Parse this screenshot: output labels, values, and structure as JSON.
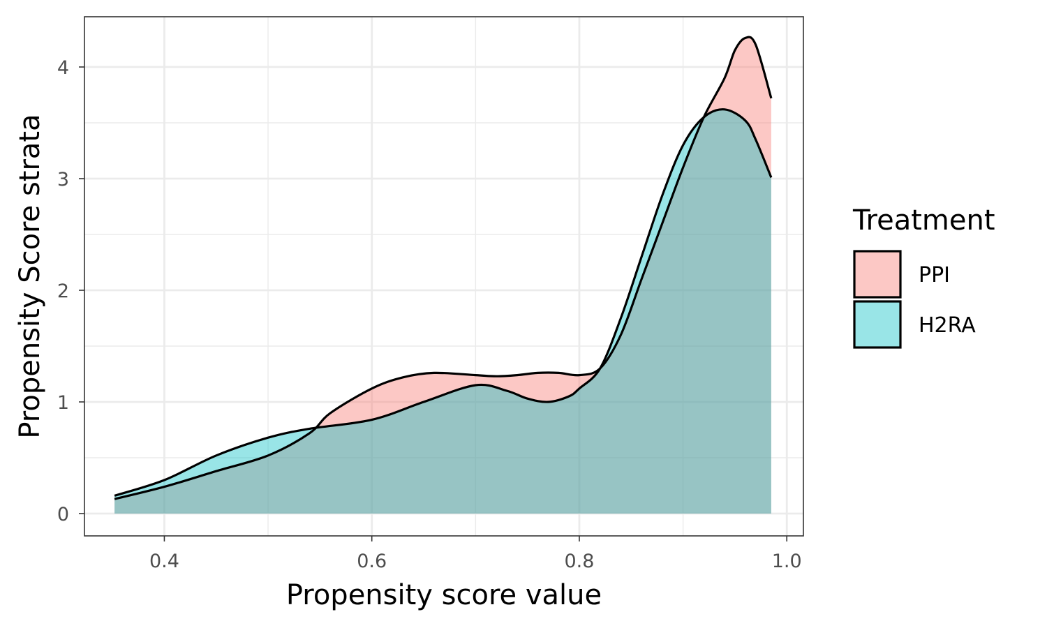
{
  "chart_data": {
    "type": "area",
    "xlabel": "Propensity score value",
    "ylabel": "Propensity Score strata",
    "xlim": [
      0.323,
      1.016
    ],
    "ylim": [
      -0.2,
      4.45
    ],
    "x_ticks": [
      0.4,
      0.6,
      0.8,
      1.0
    ],
    "x_tick_labels": [
      "0.4",
      "0.6",
      "0.8",
      "1.0"
    ],
    "y_ticks": [
      0,
      1,
      2,
      3,
      4
    ],
    "y_tick_labels": [
      "0",
      "1",
      "2",
      "3",
      "4"
    ],
    "grid": true,
    "legend": {
      "title": "Treatment",
      "placement": "right",
      "entries": [
        {
          "label": "PPI",
          "color": "#F8766D"
        },
        {
          "label": "H2RA",
          "color": "#00BFC4"
        }
      ]
    },
    "series": [
      {
        "name": "PPI",
        "color": "#F8766D",
        "x": [
          0.352,
          0.4,
          0.45,
          0.5,
          0.54,
          0.56,
          0.6,
          0.63,
          0.66,
          0.7,
          0.72,
          0.74,
          0.76,
          0.78,
          0.8,
          0.82,
          0.84,
          0.86,
          0.88,
          0.9,
          0.92,
          0.94,
          0.95,
          0.96,
          0.97,
          0.985
        ],
        "y": [
          0.13,
          0.24,
          0.38,
          0.52,
          0.72,
          0.9,
          1.12,
          1.22,
          1.26,
          1.24,
          1.23,
          1.24,
          1.26,
          1.26,
          1.24,
          1.3,
          1.6,
          2.1,
          2.6,
          3.1,
          3.55,
          3.9,
          4.15,
          4.26,
          4.2,
          3.72
        ]
      },
      {
        "name": "H2RA",
        "color": "#00BFC4",
        "x": [
          0.352,
          0.4,
          0.45,
          0.5,
          0.54,
          0.6,
          0.65,
          0.7,
          0.73,
          0.75,
          0.77,
          0.79,
          0.8,
          0.82,
          0.84,
          0.86,
          0.88,
          0.9,
          0.92,
          0.94,
          0.96,
          0.97,
          0.985
        ],
        "y": [
          0.16,
          0.3,
          0.52,
          0.68,
          0.76,
          0.84,
          1.0,
          1.15,
          1.1,
          1.03,
          1.0,
          1.05,
          1.12,
          1.3,
          1.75,
          2.3,
          2.85,
          3.3,
          3.55,
          3.62,
          3.52,
          3.35,
          3.01
        ]
      }
    ]
  }
}
